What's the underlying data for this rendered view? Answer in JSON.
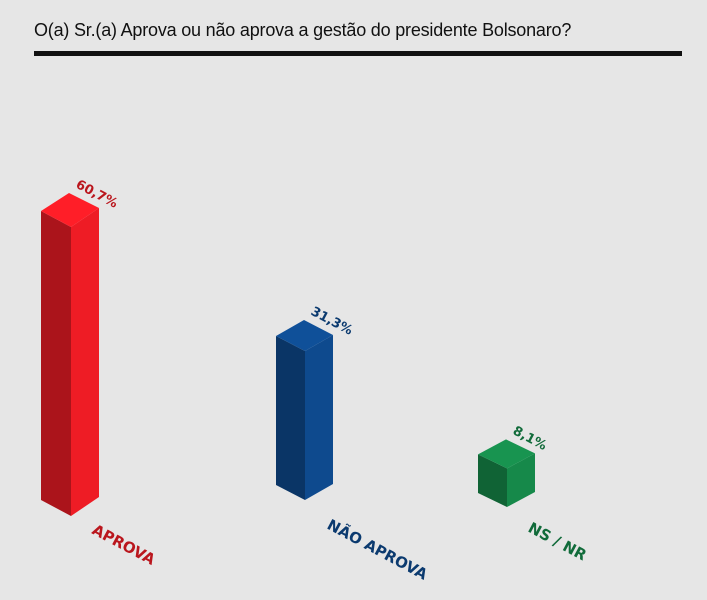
{
  "header": {
    "title": "O(a) Sr.(a) Aprova ou não aprova a gestão do presidente Bolsonaro?"
  },
  "chart_data": {
    "type": "bar",
    "title": "O(a) Sr.(a) Aprova ou não aprova a gestão do presidente Bolsonaro?",
    "categories": [
      "APROVA",
      "NÃO APROVA",
      "NS / NR"
    ],
    "values": [
      60.7,
      31.3,
      8.1
    ],
    "value_labels": [
      "60,7%",
      "31,3%",
      "8,1%"
    ],
    "unit": "%",
    "colors": [
      "#ee1c25",
      "#0e4a8e",
      "#16894a"
    ],
    "ylim": [
      0,
      60.7
    ],
    "grid": false,
    "legend": "none",
    "style": "3d-isometric"
  }
}
